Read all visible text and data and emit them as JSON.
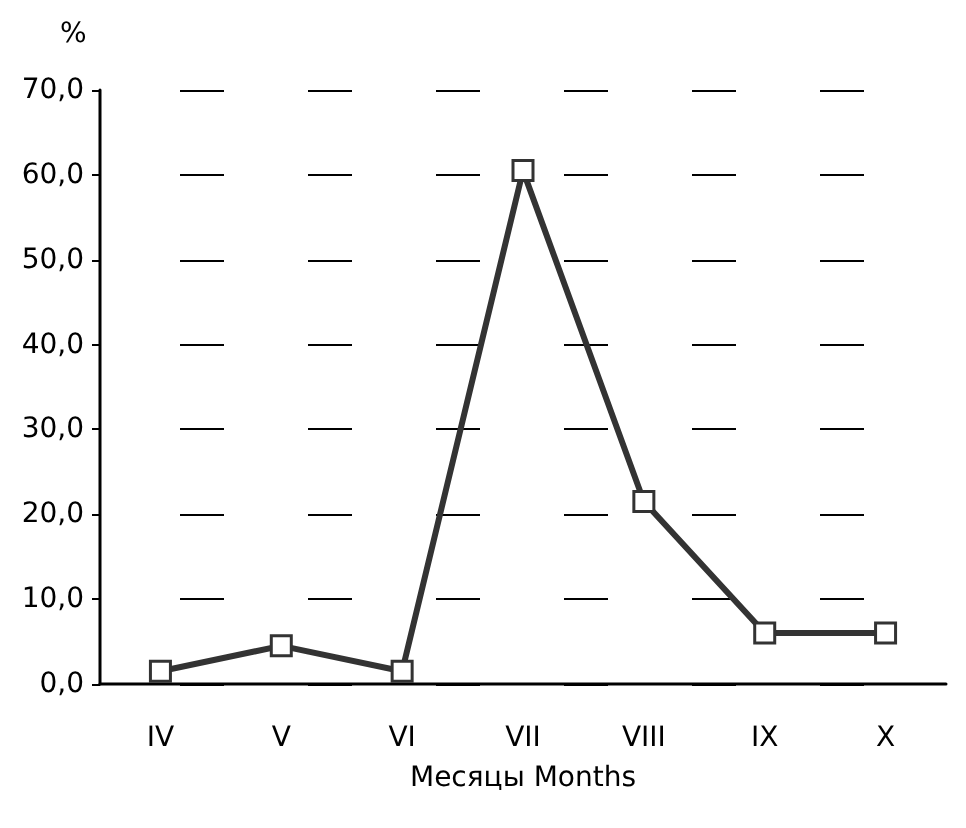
{
  "chart_data": {
    "type": "line",
    "ylabel": "%",
    "xlabel": "Месяцы Months",
    "categories": [
      "IV",
      "V",
      "VI",
      "VII",
      "VIII",
      "IX",
      "X"
    ],
    "series": [
      {
        "color": "#333333",
        "values": [
          1.5,
          4.5,
          1.5,
          60.5,
          21.5,
          6,
          6
        ]
      }
    ],
    "ylim": [
      0,
      70
    ],
    "yticks": [
      {
        "value": 0,
        "label": "0,0"
      },
      {
        "value": 10,
        "label": "10,0"
      },
      {
        "value": 20,
        "label": "20,0"
      },
      {
        "value": 30,
        "label": "30,0"
      },
      {
        "value": 40,
        "label": "40,0"
      },
      {
        "value": 50,
        "label": "50,0"
      },
      {
        "value": 60,
        "label": "60,0"
      },
      {
        "value": 70,
        "label": "70,0"
      }
    ],
    "grid": "y",
    "marker": "square",
    "line_style": "solid"
  }
}
